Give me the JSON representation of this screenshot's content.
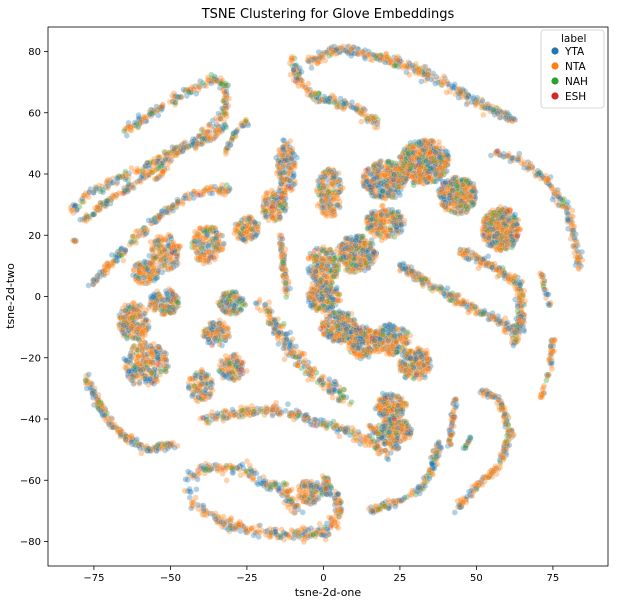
{
  "chart_data": {
    "type": "scatter",
    "title": "TSNE Clustering for Glove Embeddings",
    "xlabel": "tsne-2d-one",
    "ylabel": "tsne-2d-two",
    "xlim": [
      -90,
      93
    ],
    "ylim": [
      -88,
      88
    ],
    "xticks": [
      -75,
      -50,
      -25,
      0,
      25,
      50,
      75
    ],
    "yticks": [
      -80,
      -60,
      -40,
      -20,
      0,
      20,
      40,
      60,
      80
    ],
    "grid": false,
    "legend": {
      "title": "label",
      "placement": "top-right",
      "entries": [
        {
          "name": "YTA",
          "color": "#1f77b4"
        },
        {
          "name": "NTA",
          "color": "#ff7f0e"
        },
        {
          "name": "NAH",
          "color": "#2ca02c"
        },
        {
          "name": "ESH",
          "color": "#d62728"
        }
      ]
    },
    "colors": {
      "YTA": "#1f77b4",
      "NTA": "#ff7f0e",
      "NAH": "#2ca02c",
      "ESH": "#d62728"
    },
    "point_alpha": 0.35,
    "clusters": [
      {
        "shape": "blob",
        "center": [
          33,
          44
        ],
        "radius": [
          8,
          7
        ],
        "n": 520
      },
      {
        "shape": "blob",
        "center": [
          20,
          38
        ],
        "radius": [
          7,
          6
        ],
        "n": 340
      },
      {
        "shape": "blob",
        "center": [
          44,
          33
        ],
        "radius": [
          6,
          6
        ],
        "n": 300
      },
      {
        "shape": "blob",
        "center": [
          58,
          22
        ],
        "radius": [
          6,
          7
        ],
        "n": 420
      },
      {
        "shape": "blob",
        "center": [
          20,
          24
        ],
        "radius": [
          6,
          5
        ],
        "n": 220
      },
      {
        "shape": "blob",
        "center": [
          11,
          14
        ],
        "radius": [
          6,
          6
        ],
        "n": 300
      },
      {
        "shape": "blob",
        "center": [
          0,
          10
        ],
        "radius": [
          5,
          6
        ],
        "n": 200
      },
      {
        "shape": "blob",
        "center": [
          0,
          0
        ],
        "radius": [
          5,
          5
        ],
        "n": 200
      },
      {
        "shape": "blob",
        "center": [
          5,
          -10
        ],
        "radius": [
          6,
          5
        ],
        "n": 230
      },
      {
        "shape": "blob",
        "center": [
          13,
          -15
        ],
        "radius": [
          5,
          5
        ],
        "n": 200
      },
      {
        "shape": "blob",
        "center": [
          22,
          -14
        ],
        "radius": [
          6,
          5
        ],
        "n": 210
      },
      {
        "shape": "blob",
        "center": [
          30,
          -22
        ],
        "radius": [
          5,
          5
        ],
        "n": 200
      },
      {
        "shape": "blob",
        "center": [
          22,
          -36
        ],
        "radius": [
          5,
          4
        ],
        "n": 160
      },
      {
        "shape": "blob",
        "center": [
          23,
          -44
        ],
        "radius": [
          6,
          4
        ],
        "n": 180
      },
      {
        "shape": "blob",
        "center": [
          2,
          34
        ],
        "radius": [
          4,
          8
        ],
        "n": 180
      },
      {
        "shape": "blob",
        "center": [
          -12,
          42
        ],
        "radius": [
          3,
          9
        ],
        "n": 160
      },
      {
        "shape": "blob",
        "center": [
          -16,
          30
        ],
        "radius": [
          4,
          5
        ],
        "n": 130
      },
      {
        "shape": "blob",
        "center": [
          -25,
          22
        ],
        "radius": [
          4,
          4
        ],
        "n": 120
      },
      {
        "shape": "blob",
        "center": [
          -38,
          17
        ],
        "radius": [
          5,
          6
        ],
        "n": 170
      },
      {
        "shape": "blob",
        "center": [
          -52,
          14
        ],
        "radius": [
          5,
          6
        ],
        "n": 150
      },
      {
        "shape": "blob",
        "center": [
          -58,
          8
        ],
        "radius": [
          4,
          4
        ],
        "n": 120
      },
      {
        "shape": "blob",
        "center": [
          -52,
          -2
        ],
        "radius": [
          5,
          4
        ],
        "n": 140
      },
      {
        "shape": "blob",
        "center": [
          -62,
          -8
        ],
        "radius": [
          5,
          6
        ],
        "n": 200
      },
      {
        "shape": "blob",
        "center": [
          -58,
          -22
        ],
        "radius": [
          7,
          7
        ],
        "n": 260
      },
      {
        "shape": "blob",
        "center": [
          -30,
          -2
        ],
        "radius": [
          4,
          4
        ],
        "n": 120
      },
      {
        "shape": "blob",
        "center": [
          -35,
          -12
        ],
        "radius": [
          4,
          4
        ],
        "n": 110
      },
      {
        "shape": "blob",
        "center": [
          -30,
          -23
        ],
        "radius": [
          4,
          4
        ],
        "n": 110
      },
      {
        "shape": "blob",
        "center": [
          -40,
          -29
        ],
        "radius": [
          4,
          5
        ],
        "n": 110
      },
      {
        "shape": "blob",
        "center": [
          -5,
          -64
        ],
        "radius": [
          3,
          4
        ],
        "n": 90
      },
      {
        "shape": "blob",
        "center": [
          0,
          -62
        ],
        "radius": [
          3,
          3
        ],
        "n": 60
      },
      {
        "shape": "curve",
        "points": [
          [
            -6,
            76
          ],
          [
            5,
            81
          ],
          [
            20,
            78
          ],
          [
            35,
            72
          ],
          [
            48,
            65
          ],
          [
            62,
            57
          ]
        ],
        "width": 1.6,
        "n": 340
      },
      {
        "shape": "curve",
        "points": [
          [
            -10,
            78
          ],
          [
            -8,
            70
          ],
          [
            -2,
            65
          ],
          [
            10,
            62
          ],
          [
            18,
            56
          ]
        ],
        "width": 1.6,
        "n": 170
      },
      {
        "shape": "curve",
        "points": [
          [
            -66,
            53
          ],
          [
            -56,
            60
          ],
          [
            -44,
            67
          ],
          [
            -36,
            71
          ],
          [
            -32,
            69
          ],
          [
            -32,
            60
          ],
          [
            -40,
            52
          ],
          [
            -55,
            44
          ],
          [
            -70,
            37
          ],
          [
            -78,
            33
          ],
          [
            -82,
            28
          ]
        ],
        "width": 1.4,
        "n": 360
      },
      {
        "shape": "curve",
        "points": [
          [
            -76,
            4
          ],
          [
            -68,
            12
          ],
          [
            -55,
            25
          ],
          [
            -45,
            32
          ],
          [
            -38,
            35
          ],
          [
            -30,
            35
          ]
        ],
        "width": 1.4,
        "n": 210
      },
      {
        "shape": "curve",
        "points": [
          [
            -79,
            24
          ],
          [
            -72,
            30
          ],
          [
            -60,
            38
          ],
          [
            -52,
            44
          ],
          [
            -44,
            49
          ],
          [
            -36,
            52
          ],
          [
            -32,
            56
          ]
        ],
        "width": 1.1,
        "n": 200
      },
      {
        "shape": "curve",
        "points": [
          [
            -55,
            38
          ],
          [
            -52,
            41
          ],
          [
            -50,
            44
          ]
        ],
        "width": 0.7,
        "n": 18
      },
      {
        "shape": "curve",
        "points": [
          [
            -32,
            47
          ],
          [
            -30,
            51
          ],
          [
            -28,
            55
          ],
          [
            -25,
            57
          ]
        ],
        "width": 0.8,
        "n": 40
      },
      {
        "shape": "curve",
        "points": [
          [
            -82,
            18
          ],
          [
            -80,
            18
          ]
        ],
        "width": 0.4,
        "n": 6
      },
      {
        "shape": "curve",
        "points": [
          [
            -78,
            -26
          ],
          [
            -72,
            -38
          ],
          [
            -66,
            -45
          ],
          [
            -58,
            -50
          ],
          [
            -48,
            -48
          ]
        ],
        "width": 1.2,
        "n": 190
      },
      {
        "shape": "curve",
        "points": [
          [
            -44,
            -59
          ],
          [
            -38,
            -56
          ],
          [
            -28,
            -56
          ],
          [
            -22,
            -60
          ],
          [
            -12,
            -63
          ],
          [
            -9,
            -70
          ]
        ],
        "width": 2.0,
        "n": 180
      },
      {
        "shape": "curve",
        "points": [
          [
            -44,
            -62
          ],
          [
            -42,
            -68
          ],
          [
            -35,
            -73
          ],
          [
            -25,
            -76
          ],
          [
            -12,
            -78
          ],
          [
            0,
            -77
          ],
          [
            5,
            -72
          ],
          [
            4,
            -64
          ]
        ],
        "width": 2.0,
        "n": 260
      },
      {
        "shape": "curve",
        "points": [
          [
            -40,
            -40
          ],
          [
            -28,
            -38
          ],
          [
            -15,
            -37
          ],
          [
            -4,
            -40
          ],
          [
            8,
            -44
          ],
          [
            16,
            -48
          ],
          [
            21,
            -52
          ]
        ],
        "width": 2.0,
        "n": 260
      },
      {
        "shape": "curve",
        "points": [
          [
            -20,
            -2
          ],
          [
            -14,
            -12
          ],
          [
            -7,
            -22
          ],
          [
            0,
            -28
          ],
          [
            8,
            -34
          ]
        ],
        "width": 2.2,
        "n": 220
      },
      {
        "shape": "curve",
        "points": [
          [
            -14,
            20
          ],
          [
            -13,
            10
          ],
          [
            -12,
            0
          ]
        ],
        "width": 1.0,
        "n": 70
      },
      {
        "shape": "curve",
        "points": [
          [
            25,
            10
          ],
          [
            35,
            4
          ],
          [
            45,
            -2
          ],
          [
            55,
            -7
          ],
          [
            64,
            -12
          ]
        ],
        "width": 1.5,
        "n": 230
      },
      {
        "shape": "curve",
        "points": [
          [
            45,
            15
          ],
          [
            55,
            10
          ],
          [
            64,
            4
          ],
          [
            65,
            -5
          ],
          [
            62,
            -15
          ]
        ],
        "width": 1.5,
        "n": 240
      },
      {
        "shape": "curve",
        "points": [
          [
            55,
            47
          ],
          [
            65,
            44
          ],
          [
            73,
            38
          ],
          [
            80,
            28
          ],
          [
            82,
            18
          ],
          [
            84,
            9
          ]
        ],
        "width": 1.3,
        "n": 170
      },
      {
        "shape": "curve",
        "points": [
          [
            71,
            8
          ],
          [
            73,
            0
          ],
          [
            74,
            -3
          ]
        ],
        "width": 0.6,
        "n": 26
      },
      {
        "shape": "curve",
        "points": [
          [
            75,
            -14
          ],
          [
            74,
            -24
          ],
          [
            71,
            -33
          ]
        ],
        "width": 0.7,
        "n": 50
      },
      {
        "shape": "curve",
        "points": [
          [
            50,
            -30
          ],
          [
            58,
            -34
          ],
          [
            61,
            -45
          ],
          [
            58,
            -55
          ],
          [
            50,
            -62
          ],
          [
            44,
            -69
          ]
        ],
        "width": 1.1,
        "n": 200
      },
      {
        "shape": "curve",
        "points": [
          [
            43,
            -33
          ],
          [
            42,
            -43
          ],
          [
            41,
            -49
          ]
        ],
        "width": 0.8,
        "n": 50
      },
      {
        "shape": "curve",
        "points": [
          [
            38,
            -48
          ],
          [
            35,
            -58
          ],
          [
            30,
            -64
          ],
          [
            22,
            -68
          ],
          [
            15,
            -70
          ]
        ],
        "width": 1.3,
        "n": 140
      },
      {
        "shape": "curve",
        "points": [
          [
            48,
            -46
          ],
          [
            46,
            -50
          ]
        ],
        "width": 0.6,
        "n": 14
      },
      {
        "shape": "curve",
        "points": [
          [
            14,
            -41
          ],
          [
            20,
            -47
          ],
          [
            26,
            -51
          ]
        ],
        "width": 0.8,
        "n": 40
      }
    ]
  }
}
